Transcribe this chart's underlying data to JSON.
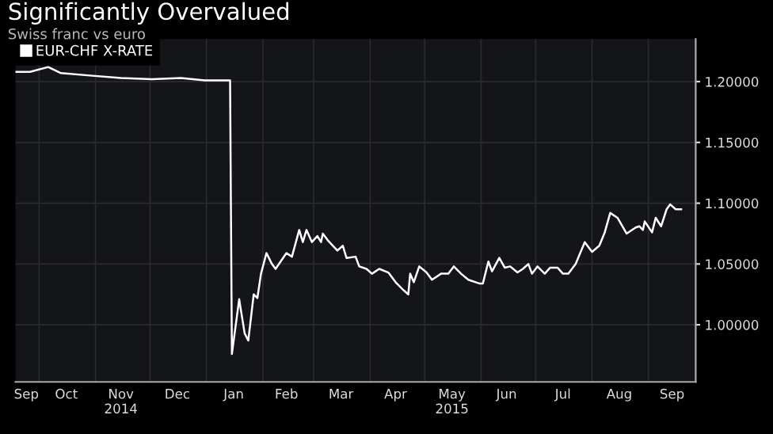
{
  "chart_data": {
    "type": "line",
    "title": "Significantly Overvalued",
    "subtitle": "Swiss franc vs euro",
    "x": [
      "2014-09-18",
      "2014-09-26",
      "2014-10-06",
      "2014-10-13",
      "2014-10-29",
      "2014-11-15",
      "2014-12-02",
      "2014-12-18",
      "2014-12-31",
      "2015-01-14",
      "2015-01-15",
      "2015-01-19",
      "2015-01-22",
      "2015-01-24",
      "2015-01-27",
      "2015-01-29",
      "2015-01-31",
      "2015-02-03",
      "2015-02-06",
      "2015-02-08",
      "2015-02-14",
      "2015-02-17",
      "2015-02-21",
      "2015-02-23",
      "2015-02-25",
      "2015-02-28",
      "2015-03-03",
      "2015-03-05",
      "2015-03-06",
      "2015-03-09",
      "2015-03-14",
      "2015-03-17",
      "2015-03-19",
      "2015-03-24",
      "2015-03-26",
      "2015-03-30",
      "2015-04-02",
      "2015-04-06",
      "2015-04-11",
      "2015-04-15",
      "2015-04-19",
      "2015-04-22",
      "2015-04-23",
      "2015-04-25",
      "2015-04-28",
      "2015-05-02",
      "2015-05-05",
      "2015-05-10",
      "2015-05-14",
      "2015-05-17",
      "2015-05-21",
      "2015-05-25",
      "2015-05-31",
      "2015-06-02",
      "2015-06-05",
      "2015-06-07",
      "2015-06-11",
      "2015-06-14",
      "2015-06-17",
      "2015-06-21",
      "2015-06-24",
      "2015-06-27",
      "2015-06-29",
      "2015-07-02",
      "2015-07-06",
      "2015-07-09",
      "2015-07-13",
      "2015-07-16",
      "2015-07-19",
      "2015-07-23",
      "2015-07-28",
      "2015-08-01",
      "2015-08-05",
      "2015-08-08",
      "2015-08-11",
      "2015-08-15",
      "2015-08-20",
      "2015-08-25",
      "2015-08-27",
      "2015-08-29",
      "2015-08-30",
      "2015-09-03",
      "2015-09-05",
      "2015-09-08",
      "2015-09-11",
      "2015-09-13",
      "2015-09-16",
      "2015-09-19"
    ],
    "series": [
      {
        "name": "EUR-CHF X-RATE",
        "color": "#ffffff",
        "values": [
          1.208,
          1.208,
          1.212,
          1.207,
          1.205,
          1.203,
          1.202,
          1.203,
          1.201,
          1.201,
          0.976,
          1.021,
          0.993,
          0.987,
          1.025,
          1.022,
          1.042,
          1.059,
          1.05,
          1.046,
          1.059,
          1.056,
          1.078,
          1.068,
          1.078,
          1.068,
          1.073,
          1.068,
          1.075,
          1.069,
          1.061,
          1.065,
          1.055,
          1.056,
          1.048,
          1.046,
          1.042,
          1.046,
          1.043,
          1.035,
          1.029,
          1.025,
          1.042,
          1.035,
          1.048,
          1.043,
          1.037,
          1.042,
          1.042,
          1.048,
          1.042,
          1.037,
          1.034,
          1.034,
          1.052,
          1.044,
          1.055,
          1.047,
          1.048,
          1.043,
          1.046,
          1.05,
          1.042,
          1.048,
          1.042,
          1.047,
          1.047,
          1.042,
          1.042,
          1.05,
          1.068,
          1.06,
          1.065,
          1.076,
          1.092,
          1.088,
          1.075,
          1.08,
          1.081,
          1.078,
          1.085,
          1.076,
          1.088,
          1.081,
          1.095,
          1.099,
          1.095,
          1.095
        ]
      }
    ],
    "xlim": [
      "2014-09-18",
      "2015-09-27"
    ],
    "xticks": [
      {
        "value": "2014-10-01",
        "label": null
      },
      {
        "value": "2014-11-01",
        "label": null
      },
      {
        "value": "2014-12-01",
        "label": null
      },
      {
        "value": "2015-01-01",
        "label": null
      },
      {
        "value": "2015-02-01",
        "label": null
      },
      {
        "value": "2015-03-01",
        "label": null
      },
      {
        "value": "2015-04-01",
        "label": null
      },
      {
        "value": "2015-05-01",
        "label": null
      },
      {
        "value": "2015-06-01",
        "label": null
      },
      {
        "value": "2015-07-01",
        "label": null
      },
      {
        "value": "2015-08-01",
        "label": null
      },
      {
        "value": "2015-09-01",
        "label": null
      },
      {
        "value": "2014-09-24",
        "label": "Sep"
      },
      {
        "value": "2014-10-16",
        "label": "Oct"
      },
      {
        "value": "2014-11-15",
        "label": "Nov\n2014"
      },
      {
        "value": "2014-12-16",
        "label": "Dec"
      },
      {
        "value": "2015-01-16",
        "label": "Jan"
      },
      {
        "value": "2015-02-14",
        "label": "Feb"
      },
      {
        "value": "2015-03-16",
        "label": "Mar"
      },
      {
        "value": "2015-04-15",
        "label": "Apr"
      },
      {
        "value": "2015-05-16",
        "label": "May\n2015"
      },
      {
        "value": "2015-06-15",
        "label": "Jun"
      },
      {
        "value": "2015-07-16",
        "label": "Jul"
      },
      {
        "value": "2015-08-16",
        "label": "Aug"
      },
      {
        "value": "2015-09-14",
        "label": "Sep"
      }
    ],
    "ylim": [
      0.953,
      1.235
    ],
    "yticks": [
      {
        "value": 1.0,
        "label": "1.00000"
      },
      {
        "value": 1.05,
        "label": "1.05000"
      },
      {
        "value": 1.1,
        "label": "1.10000"
      },
      {
        "value": 1.15,
        "label": "1.15000"
      },
      {
        "value": 1.2,
        "label": "1.20000"
      }
    ],
    "grid": true,
    "legend": "top left",
    "marker": "none",
    "line_style": "solid"
  }
}
